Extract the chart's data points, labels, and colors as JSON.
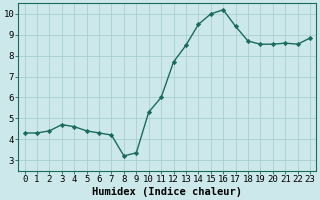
{
  "x": [
    0,
    1,
    2,
    3,
    4,
    5,
    6,
    7,
    8,
    9,
    10,
    11,
    12,
    13,
    14,
    15,
    16,
    17,
    18,
    19,
    20,
    21,
    22,
    23
  ],
  "y": [
    4.3,
    4.3,
    4.4,
    4.7,
    4.6,
    4.4,
    4.3,
    4.2,
    3.2,
    3.35,
    5.3,
    6.0,
    7.7,
    8.5,
    9.5,
    10.0,
    10.2,
    9.4,
    8.7,
    8.55,
    8.55,
    8.6,
    8.55,
    8.85
  ],
  "line_color": "#1a6b5a",
  "marker": "D",
  "marker_size": 2.2,
  "bg_color": "#cce8ea",
  "grid_color": "#aacfcf",
  "xlabel": "Humidex (Indice chaleur)",
  "xlim": [
    -0.5,
    23.5
  ],
  "ylim": [
    2.5,
    10.5
  ],
  "yticks": [
    3,
    4,
    5,
    6,
    7,
    8,
    9,
    10
  ],
  "xticks": [
    0,
    1,
    2,
    3,
    4,
    5,
    6,
    7,
    8,
    9,
    10,
    11,
    12,
    13,
    14,
    15,
    16,
    17,
    18,
    19,
    20,
    21,
    22,
    23
  ],
  "xtick_labels": [
    "0",
    "1",
    "2",
    "3",
    "4",
    "5",
    "6",
    "7",
    "8",
    "9",
    "10",
    "11",
    "12",
    "13",
    "14",
    "15",
    "16",
    "17",
    "18",
    "19",
    "20",
    "21",
    "22",
    "23"
  ],
  "line_width": 1.0,
  "xlabel_fontsize": 7.5,
  "tick_fontsize": 6.5,
  "axis_color": "#1a6b5a",
  "spine_color": "#1a6b5a"
}
